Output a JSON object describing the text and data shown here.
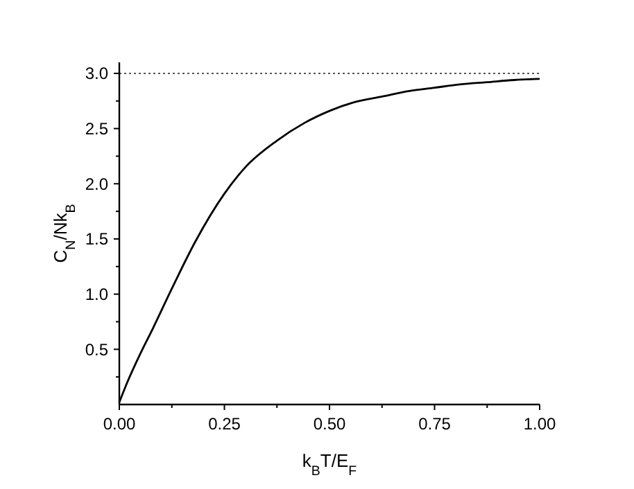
{
  "chart_data": {
    "type": "line",
    "xlabel": "k$_{B}$T/E$_{F}$",
    "ylabel": "C$_{N}$/Nk$_{B}$",
    "x": [
      0,
      0.02,
      0.05,
      0.08,
      0.125,
      0.18,
      0.25,
      0.3,
      0.375,
      0.44,
      0.5,
      0.56,
      0.625,
      0.69,
      0.75,
      0.81,
      0.875,
      0.94,
      1.0
    ],
    "series": [
      {
        "color": "#000000",
        "values": [
          0.02,
          0.21,
          0.46,
          0.69,
          1.05,
          1.47,
          1.91,
          2.15,
          2.39,
          2.55,
          2.66,
          2.74,
          2.79,
          2.84,
          2.87,
          2.9,
          2.92,
          2.94,
          2.95
        ]
      }
    ],
    "xlim": [
      0,
      1.0
    ],
    "ylim": [
      0,
      3.1
    ],
    "xticks": [
      {
        "value": 0,
        "label": "0.00"
      },
      {
        "value": 0.125,
        "label": null
      },
      {
        "value": 0.25,
        "label": "0.25"
      },
      {
        "value": 0.375,
        "label": null
      },
      {
        "value": 0.5,
        "label": "0.50"
      },
      {
        "value": 0.625,
        "label": null
      },
      {
        "value": 0.75,
        "label": "0.75"
      },
      {
        "value": 0.875,
        "label": null
      },
      {
        "value": 1.0,
        "label": "1.00"
      }
    ],
    "yticks": [
      {
        "value": 0.25,
        "label": null
      },
      {
        "value": 0.5,
        "label": "0.5"
      },
      {
        "value": 0.75,
        "label": null
      },
      {
        "value": 1.0,
        "label": "1.0"
      },
      {
        "value": 1.25,
        "label": null
      },
      {
        "value": 1.5,
        "label": "1.5"
      },
      {
        "value": 1.75,
        "label": null
      },
      {
        "value": 2.0,
        "label": "2.0"
      },
      {
        "value": 2.25,
        "label": null
      },
      {
        "value": 2.5,
        "label": "2.5"
      },
      {
        "value": 2.75,
        "label": null
      },
      {
        "value": 3.0,
        "label": "3.0"
      }
    ],
    "ref_lines": [
      {
        "axis": "y",
        "value": 3.0,
        "color": "#555555",
        "line_style": "dotted"
      }
    ],
    "grid": false,
    "marker": "none",
    "line_style": "solid"
  }
}
